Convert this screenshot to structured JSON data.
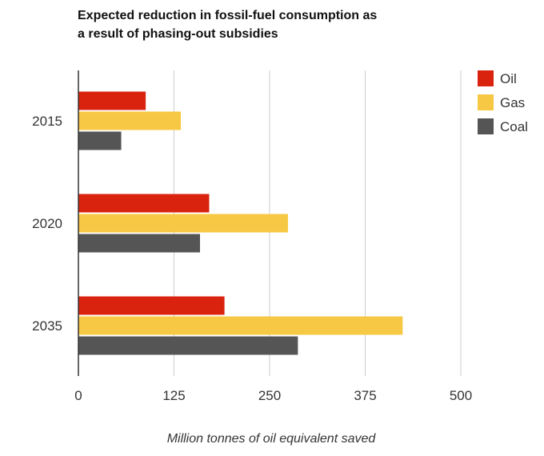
{
  "chart_data": {
    "type": "bar",
    "orientation": "horizontal",
    "title_lines": [
      "Expected reduction in fossil-fuel consumption as",
      "a result of phasing-out subsidies"
    ],
    "categories": [
      "2015",
      "2020",
      "2035"
    ],
    "series": [
      {
        "name": "Oil",
        "color": "#d9230f",
        "values": [
          88,
          171,
          191
        ]
      },
      {
        "name": "Gas",
        "color": "#f7c843",
        "values": [
          134,
          274,
          424
        ]
      },
      {
        "name": "Coal",
        "color": "#555555",
        "values": [
          56,
          159,
          287
        ]
      }
    ],
    "xlabel": "Million tonnes of oil equivalent saved",
    "ylabel": "",
    "xlim": [
      0,
      500
    ],
    "xticks": [
      0,
      125,
      250,
      375,
      500
    ],
    "xtick_labels": [
      "0",
      "125",
      "250",
      "375",
      "500"
    ],
    "grid": true,
    "legend_position": "right"
  }
}
